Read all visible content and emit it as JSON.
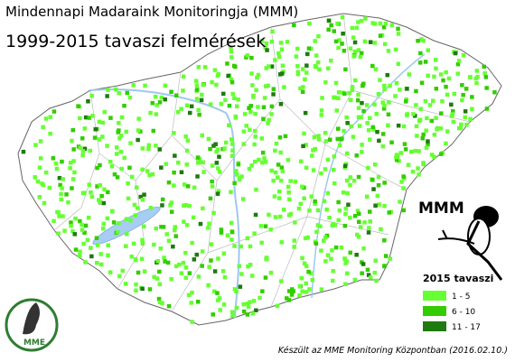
{
  "header": {
    "title": "Mindennapi Madaraink Monitoringja (MMM)",
    "subtitle": "1999-2015 tavaszi felmérések"
  },
  "logos": {
    "mmm": "MMM",
    "mme": "MME"
  },
  "legend": {
    "title": "2015 tavaszi",
    "items": [
      {
        "label": "1 - 5",
        "color": "#66ff33"
      },
      {
        "label": "6 - 10",
        "color": "#33cc00"
      },
      {
        "label": "11 - 17",
        "color": "#1f7a0f"
      }
    ]
  },
  "credit": "Készült az MME Monitoring Központban (2016.02.10.)"
}
